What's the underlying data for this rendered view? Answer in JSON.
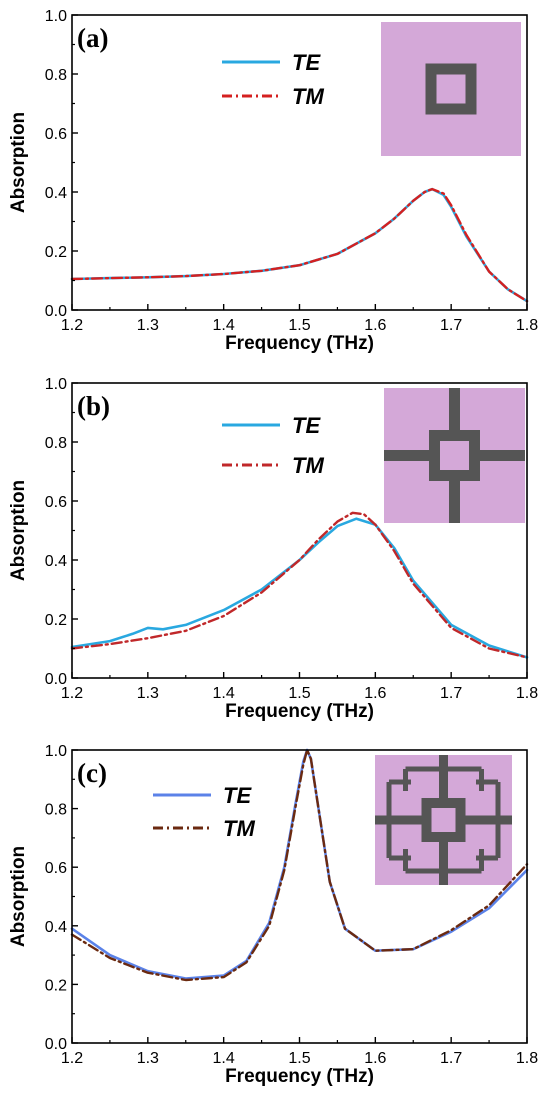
{
  "chart_data": [
    {
      "type": "line",
      "panel_label": "(a)",
      "xlabel": "Frequency (THz)",
      "ylabel": "Absorption",
      "xlim": [
        1.2,
        1.8
      ],
      "ylim": [
        0.0,
        1.0
      ],
      "xticks": [
        "1.2",
        "1.3",
        "1.4",
        "1.5",
        "1.6",
        "1.7",
        "1.8"
      ],
      "yticks": [
        "0.0",
        "0.2",
        "0.4",
        "0.6",
        "0.8",
        "1.0"
      ],
      "grid": false,
      "legend_position": "top-center",
      "inset": "square-ring",
      "series": [
        {
          "name": "TE",
          "color": "#29a8e0",
          "style": "solid",
          "x": [
            1.2,
            1.25,
            1.3,
            1.35,
            1.4,
            1.45,
            1.5,
            1.55,
            1.6,
            1.625,
            1.65,
            1.665,
            1.675,
            1.69,
            1.7,
            1.72,
            1.75,
            1.775,
            1.8
          ],
          "y": [
            0.105,
            0.108,
            0.111,
            0.115,
            0.122,
            0.133,
            0.152,
            0.19,
            0.26,
            0.31,
            0.37,
            0.4,
            0.41,
            0.39,
            0.35,
            0.25,
            0.13,
            0.07,
            0.03
          ]
        },
        {
          "name": "TM",
          "color": "#d42020",
          "style": "dashdot",
          "x": [
            1.2,
            1.25,
            1.3,
            1.35,
            1.4,
            1.45,
            1.5,
            1.55,
            1.6,
            1.625,
            1.65,
            1.665,
            1.675,
            1.69,
            1.7,
            1.72,
            1.75,
            1.775,
            1.8
          ],
          "y": [
            0.105,
            0.108,
            0.111,
            0.115,
            0.122,
            0.133,
            0.152,
            0.19,
            0.26,
            0.31,
            0.37,
            0.4,
            0.41,
            0.395,
            0.355,
            0.255,
            0.13,
            0.07,
            0.03
          ]
        }
      ]
    },
    {
      "type": "line",
      "panel_label": "(b)",
      "xlabel": "Frequency (THz)",
      "ylabel": "Absorption",
      "xlim": [
        1.2,
        1.8
      ],
      "ylim": [
        0.0,
        1.0
      ],
      "xticks": [
        "1.2",
        "1.3",
        "1.4",
        "1.5",
        "1.6",
        "1.7",
        "1.8"
      ],
      "yticks": [
        "0.0",
        "0.2",
        "0.4",
        "0.6",
        "0.8",
        "1.0"
      ],
      "grid": false,
      "legend_position": "top-center",
      "inset": "square-ring-with-cross-arms",
      "series": [
        {
          "name": "TE",
          "color": "#29a8e0",
          "style": "solid",
          "x": [
            1.2,
            1.25,
            1.28,
            1.3,
            1.32,
            1.35,
            1.4,
            1.45,
            1.5,
            1.525,
            1.55,
            1.575,
            1.6,
            1.625,
            1.65,
            1.7,
            1.75,
            1.8
          ],
          "y": [
            0.105,
            0.125,
            0.15,
            0.17,
            0.165,
            0.18,
            0.23,
            0.3,
            0.4,
            0.46,
            0.515,
            0.54,
            0.52,
            0.44,
            0.33,
            0.18,
            0.11,
            0.07
          ]
        },
        {
          "name": "TM",
          "color": "#c0282a",
          "style": "dashdot",
          "x": [
            1.2,
            1.25,
            1.3,
            1.35,
            1.4,
            1.45,
            1.5,
            1.525,
            1.55,
            1.57,
            1.585,
            1.6,
            1.625,
            1.65,
            1.7,
            1.75,
            1.8
          ],
          "y": [
            0.1,
            0.115,
            0.135,
            0.16,
            0.21,
            0.29,
            0.4,
            0.47,
            0.53,
            0.56,
            0.555,
            0.52,
            0.43,
            0.32,
            0.17,
            0.1,
            0.07
          ]
        }
      ]
    },
    {
      "type": "line",
      "panel_label": "(c)",
      "xlabel": "Frequency (THz)",
      "ylabel": "Absorption",
      "xlim": [
        1.2,
        1.8
      ],
      "ylim": [
        0.0,
        1.0
      ],
      "xticks": [
        "1.2",
        "1.3",
        "1.4",
        "1.5",
        "1.6",
        "1.7",
        "1.8"
      ],
      "yticks": [
        "0.0",
        "0.2",
        "0.4",
        "0.6",
        "0.8",
        "1.0"
      ],
      "grid": false,
      "legend_position": "top-left",
      "inset": "square-ring-with-branched-arms",
      "series": [
        {
          "name": "TE",
          "color": "#5b82e8",
          "style": "solid",
          "x": [
            1.2,
            1.25,
            1.3,
            1.35,
            1.4,
            1.43,
            1.46,
            1.48,
            1.495,
            1.505,
            1.51,
            1.515,
            1.525,
            1.54,
            1.56,
            1.6,
            1.65,
            1.7,
            1.75,
            1.8
          ],
          "y": [
            0.39,
            0.3,
            0.245,
            0.22,
            0.23,
            0.28,
            0.41,
            0.6,
            0.82,
            0.96,
            1.0,
            0.97,
            0.8,
            0.55,
            0.39,
            0.315,
            0.32,
            0.38,
            0.46,
            0.59
          ]
        },
        {
          "name": "TM",
          "color": "#6b2a10",
          "style": "dashdot",
          "x": [
            1.2,
            1.25,
            1.3,
            1.35,
            1.4,
            1.43,
            1.46,
            1.48,
            1.495,
            1.505,
            1.51,
            1.515,
            1.525,
            1.54,
            1.56,
            1.6,
            1.65,
            1.7,
            1.75,
            1.8
          ],
          "y": [
            0.37,
            0.29,
            0.24,
            0.215,
            0.225,
            0.275,
            0.4,
            0.59,
            0.81,
            0.95,
            1.0,
            0.97,
            0.8,
            0.55,
            0.39,
            0.315,
            0.32,
            0.385,
            0.47,
            0.61
          ]
        }
      ]
    }
  ]
}
